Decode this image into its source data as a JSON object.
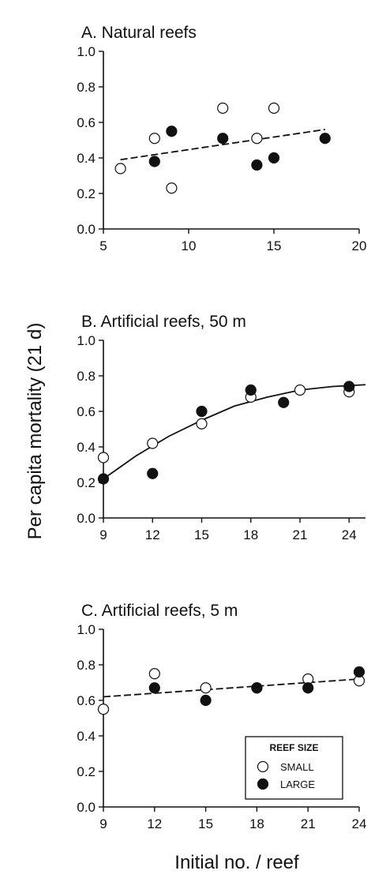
{
  "chart_data": [
    {
      "type": "scatter",
      "title": "A. Natural reefs",
      "xlim": [
        5,
        20
      ],
      "xticks": [
        5,
        10,
        15,
        20
      ],
      "ylim": [
        0.0,
        1.0
      ],
      "yticks": [
        "0.0",
        "0.2",
        "0.4",
        "0.6",
        "0.8",
        "1.0"
      ],
      "series": [
        {
          "marker": "open",
          "points": [
            [
              6,
              0.34
            ],
            [
              8,
              0.51
            ],
            [
              9,
              0.23
            ],
            [
              12,
              0.68
            ],
            [
              14,
              0.51
            ],
            [
              15,
              0.68
            ]
          ]
        },
        {
          "marker": "filled",
          "points": [
            [
              8,
              0.38
            ],
            [
              9,
              0.55
            ],
            [
              12,
              0.51
            ],
            [
              14,
              0.36
            ],
            [
              15,
              0.4
            ],
            [
              18,
              0.51
            ]
          ]
        }
      ],
      "fit": {
        "style": "dashed",
        "points": [
          [
            6,
            0.39
          ],
          [
            18,
            0.56
          ]
        ]
      }
    },
    {
      "type": "scatter",
      "title": "B. Artificial reefs, 50 m",
      "xlim": [
        9,
        25
      ],
      "xticks": [
        9,
        12,
        15,
        18,
        21,
        24
      ],
      "ylim": [
        0.0,
        1.0
      ],
      "yticks": [
        "0.0",
        "0.2",
        "0.4",
        "0.6",
        "0.8",
        "1.0"
      ],
      "series": [
        {
          "marker": "open",
          "points": [
            [
              9,
              0.34
            ],
            [
              12,
              0.42
            ],
            [
              15,
              0.53
            ],
            [
              18,
              0.68
            ],
            [
              21,
              0.72
            ],
            [
              24,
              0.71
            ]
          ]
        },
        {
          "marker": "filled",
          "points": [
            [
              9,
              0.22
            ],
            [
              12,
              0.25
            ],
            [
              15,
              0.6
            ],
            [
              18,
              0.72
            ],
            [
              20,
              0.65
            ],
            [
              24,
              0.74
            ]
          ]
        }
      ],
      "fit": {
        "style": "solid",
        "points": [
          [
            9,
            0.22
          ],
          [
            11,
            0.35
          ],
          [
            13,
            0.46
          ],
          [
            15,
            0.55
          ],
          [
            17,
            0.63
          ],
          [
            19,
            0.68
          ],
          [
            21,
            0.72
          ],
          [
            23,
            0.74
          ],
          [
            25,
            0.75
          ]
        ]
      }
    },
    {
      "type": "scatter",
      "title": "C. Artificial reefs, 5 m",
      "xlim": [
        9,
        24
      ],
      "xticks": [
        9,
        12,
        15,
        18,
        21,
        24
      ],
      "ylim": [
        0.0,
        1.0
      ],
      "yticks": [
        "0.0",
        "0.2",
        "0.4",
        "0.6",
        "0.8",
        "1.0"
      ],
      "series": [
        {
          "name": "SMALL",
          "marker": "open",
          "points": [
            [
              9,
              0.55
            ],
            [
              12,
              0.75
            ],
            [
              15,
              0.67
            ],
            [
              18,
              0.67
            ],
            [
              21,
              0.72
            ],
            [
              24,
              0.71
            ]
          ]
        },
        {
          "name": "LARGE",
          "marker": "filled",
          "points": [
            [
              12,
              0.67
            ],
            [
              15,
              0.6
            ],
            [
              18,
              0.67
            ],
            [
              21,
              0.67
            ],
            [
              24,
              0.76
            ]
          ]
        }
      ],
      "fit": {
        "style": "dashed",
        "points": [
          [
            9,
            0.62
          ],
          [
            24,
            0.72
          ]
        ]
      },
      "legend": {
        "title": "REEF SIZE",
        "position": "bottom-right"
      }
    }
  ],
  "ylabel": "Per capita mortality (21 d)",
  "xlabel": "Initial no. / reef"
}
